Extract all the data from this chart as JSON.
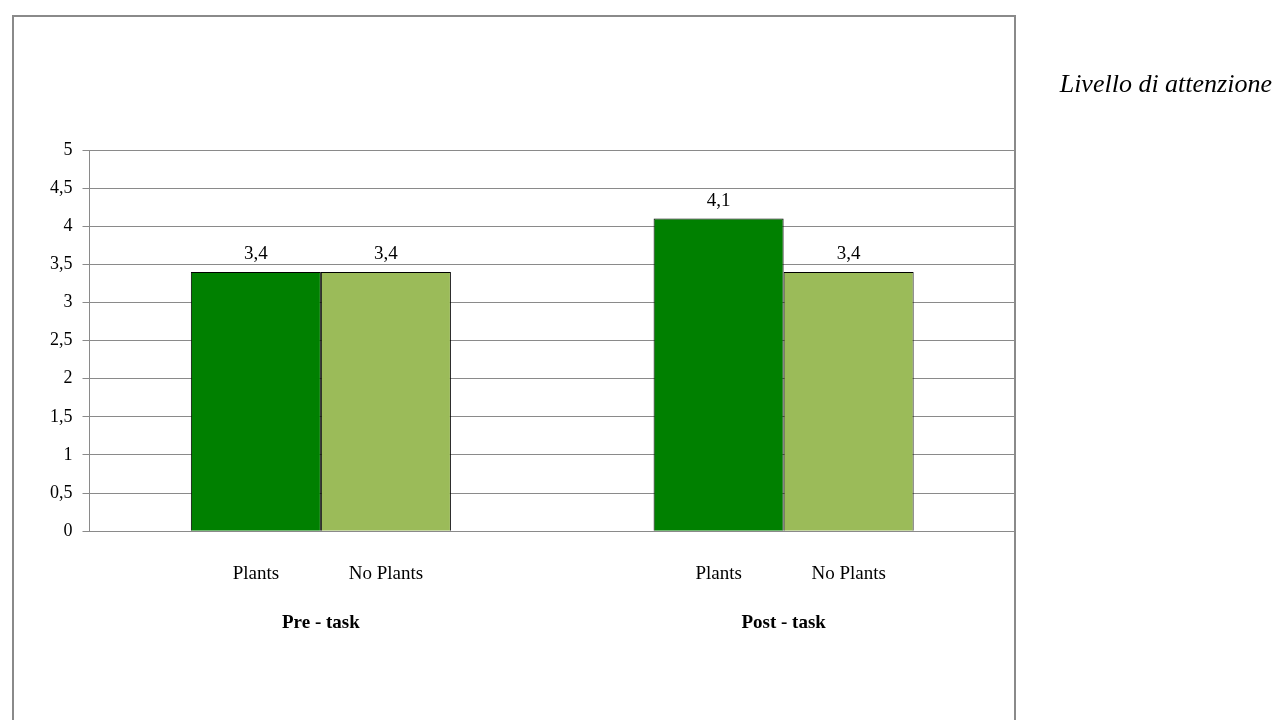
{
  "chart_data": {
    "type": "bar",
    "title": "Livello di attenzione",
    "categories": [
      "Pre - task",
      "Post - task"
    ],
    "series": [
      {
        "name": "Plants",
        "color": "#008000",
        "values": [
          3.4,
          4.1
        ],
        "value_labels": [
          "3,4",
          "4,1"
        ]
      },
      {
        "name": "No Plants",
        "color": "#9bbb59",
        "values": [
          3.4,
          3.4
        ],
        "value_labels": [
          "3,4",
          "3,4"
        ]
      }
    ],
    "ylim": [
      0,
      5
    ],
    "yticks": [
      {
        "value": 0,
        "label": "0"
      },
      {
        "value": 0.5,
        "label": "0,5"
      },
      {
        "value": 1,
        "label": "1"
      },
      {
        "value": 1.5,
        "label": "1,5"
      },
      {
        "value": 2,
        "label": "2"
      },
      {
        "value": 2.5,
        "label": "2,5"
      },
      {
        "value": 3,
        "label": "3"
      },
      {
        "value": 3.5,
        "label": "3,5"
      },
      {
        "value": 4,
        "label": "4"
      },
      {
        "value": 4.5,
        "label": "4,5"
      },
      {
        "value": 5,
        "label": "5"
      }
    ],
    "grid": "y"
  }
}
